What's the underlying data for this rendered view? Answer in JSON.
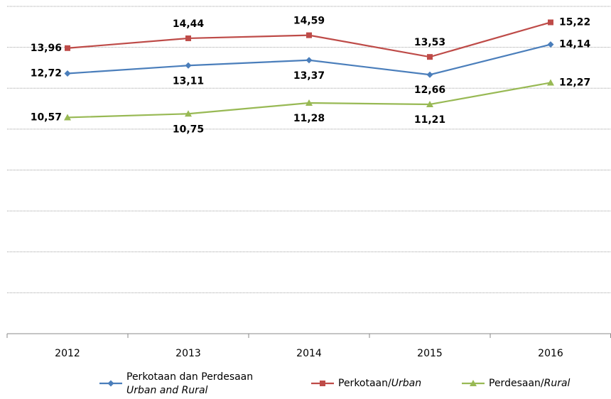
{
  "chart_data": {
    "type": "line",
    "categories": [
      "2012",
      "2013",
      "2014",
      "2015",
      "2016"
    ],
    "series": [
      {
        "name": [
          "Perkotaan  dan Perdesaan",
          "Urban and Rural"
        ],
        "color": "#4a7ebb",
        "marker": "diamond",
        "values": [
          12.72,
          13.11,
          13.37,
          12.66,
          14.14
        ],
        "value_labels": [
          "12,72",
          "13,11",
          "13,37",
          "12,66",
          "14,14"
        ]
      },
      {
        "name": [
          "Perkotaan/",
          "Urban"
        ],
        "color": "#be4b48",
        "marker": "square",
        "values": [
          13.96,
          14.44,
          14.59,
          13.53,
          15.22
        ],
        "value_labels": [
          "13,96",
          "14,44",
          "14,59",
          "13,53",
          "15,22"
        ]
      },
      {
        "name": [
          "Perdesaan/",
          "Rural"
        ],
        "color": "#98b954",
        "marker": "triangle",
        "values": [
          10.57,
          10.75,
          11.28,
          11.21,
          12.27
        ],
        "value_labels": [
          "10,57",
          "10,75",
          "11,28",
          "11,21",
          "12,27"
        ]
      }
    ],
    "ylim": [
      0,
      16
    ],
    "yticks": [
      0,
      2,
      4,
      6,
      8,
      10,
      12,
      14,
      16
    ],
    "grid": true,
    "legend": "bottom"
  }
}
